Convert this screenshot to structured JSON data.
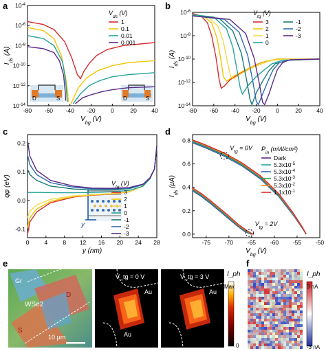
{
  "panel_labels": [
    "a",
    "b",
    "c",
    "d",
    "e",
    "f"
  ],
  "colors": {
    "red": "#d62d2d",
    "yellow": "#f2c400",
    "teal": "#21a39b",
    "purple": "#5b2a86",
    "orange": "#f08a24",
    "green": "#2e9b4a",
    "blue": "#2f6db0",
    "navy": "#1f2d6b"
  },
  "chart_data": [
    {
      "id": "a",
      "type": "line",
      "xlabel": "V_bg (V)",
      "ylabel": "I_ds (A)",
      "xlim": [
        -80,
        40
      ],
      "ylim_log10": [
        -14,
        -4
      ],
      "log_y": true,
      "x_ticks": [
        "-80",
        "-60",
        "-40",
        "-20",
        "0",
        "20",
        "40"
      ],
      "y_ticks": [
        "10^-14",
        "10^-12",
        "10^-10",
        "10^-8",
        "10^-6",
        "10^-4"
      ],
      "legend_title": "V_ds (V)",
      "legend_position": "top-right",
      "series": [
        {
          "name": "1",
          "color": "#d62d2d",
          "x": [
            -80,
            -65,
            -55,
            -45,
            -38,
            -33,
            -30,
            -27,
            -22,
            -15,
            -5,
            10,
            40
          ],
          "log_y": [
            -5.6,
            -5.9,
            -6.4,
            -7.6,
            -9.3,
            -10.9,
            -11.3,
            -10.6,
            -9.8,
            -9.0,
            -8.4,
            -8.0,
            -7.7
          ]
        },
        {
          "name": "0.1",
          "color": "#f2c400",
          "x": [
            -80,
            -65,
            -55,
            -48,
            -44,
            -42,
            -41.5
          ],
          "log_y": [
            -6.2,
            -6.5,
            -7.3,
            -9.0,
            -11.2,
            -12.8,
            -13.6
          ]
        },
        {
          "name": "0.01",
          "color": "#21a39b",
          "x": [
            -80,
            -65,
            -55,
            -47,
            -44,
            -43,
            -42.5
          ],
          "log_y": [
            -7.0,
            -7.3,
            -8.0,
            -9.6,
            -11.5,
            -12.9,
            -13.6
          ]
        },
        {
          "name": "0.001",
          "color": "#5b2a86",
          "x": [
            -80,
            -65,
            -55,
            -50,
            -46,
            -44.5,
            -44
          ],
          "log_y": [
            -8.1,
            -8.3,
            -8.7,
            -9.5,
            -10.9,
            -12.5,
            -13.5
          ]
        },
        {
          "name": "0.1",
          "color": "#f2c400",
          "x": [
            -39,
            -32,
            -24,
            -14,
            0,
            15,
            40
          ],
          "log_y": [
            -13.8,
            -12.2,
            -11.2,
            -10.5,
            -10.0,
            -9.7,
            -9.5
          ]
        },
        {
          "name": "0.01",
          "color": "#21a39b",
          "x": [
            -37,
            -30,
            -22,
            -12,
            0,
            15,
            40
          ],
          "log_y": [
            -13.8,
            -12.8,
            -12.0,
            -11.5,
            -11.1,
            -10.9,
            -10.7
          ]
        },
        {
          "name": "0.001",
          "color": "#5b2a86",
          "x": [
            -35,
            -28,
            -20,
            -10,
            0,
            15,
            40
          ],
          "log_y": [
            -13.8,
            -13.2,
            -12.9,
            -12.6,
            -12.4,
            -12.2,
            -12.1
          ]
        }
      ]
    },
    {
      "id": "b",
      "type": "line",
      "xlabel": "V_bg (V)",
      "ylabel": "I_ds (A)",
      "xlim": [
        -80,
        40
      ],
      "ylim_log10": [
        -14,
        -6
      ],
      "log_y": true,
      "x_ticks": [
        "-80",
        "-60",
        "-40",
        "-20",
        "0",
        "20",
        "40"
      ],
      "y_ticks": [
        "10^-14",
        "10^-12",
        "10^-10",
        "10^-8",
        "10^-6"
      ],
      "legend_title": "V_tg (V)",
      "legend_position": "top-right",
      "series": [
        {
          "name": "3",
          "color": "#d62d2d",
          "x": [
            -80,
            -72,
            -66,
            -62,
            -58,
            -55,
            -53,
            -50,
            -45,
            -35,
            -25,
            -15,
            0,
            20,
            40
          ],
          "log_y": [
            -6.1,
            -6.3,
            -6.9,
            -8.0,
            -9.8,
            -11.7,
            -12.5,
            -12.3,
            -11.8,
            -11.2,
            -10.7,
            -10.3,
            -10.0,
            -10.0,
            -10.0
          ]
        },
        {
          "name": "2",
          "color": "#f2c400",
          "x": [
            -80,
            -70,
            -62,
            -57,
            -53,
            -51,
            -48,
            -42,
            -32,
            -22,
            -12,
            0,
            20,
            40
          ],
          "log_y": [
            -6.2,
            -6.3,
            -6.9,
            -8.2,
            -10.2,
            -11.5,
            -11.9,
            -11.5,
            -11.0,
            -10.6,
            -10.2,
            -10.0,
            -10.0,
            -10.0
          ]
        },
        {
          "name": "1",
          "color": "#f5d94a",
          "x": [
            -80,
            -65,
            -56,
            -51,
            -47,
            -44,
            -41,
            -35,
            -25,
            -15,
            -5,
            10,
            40
          ],
          "log_y": [
            -6.2,
            -6.4,
            -7.2,
            -8.5,
            -10.3,
            -11.5,
            -11.7,
            -11.3,
            -10.8,
            -10.4,
            -10.1,
            -10.0,
            -10.0
          ]
        },
        {
          "name": "0",
          "color": "#21a39b",
          "x": [
            -80,
            -60,
            -48,
            -42,
            -38,
            -35,
            -33,
            -28,
            -20,
            -12,
            -5,
            5,
            40
          ],
          "log_y": [
            -6.2,
            -6.4,
            -7.4,
            -9.0,
            -11.0,
            -12.5,
            -13.0,
            -12.3,
            -11.5,
            -10.9,
            -10.4,
            -10.1,
            -10.0
          ]
        },
        {
          "name": "-1",
          "color": "#1a7a7a",
          "x": [
            -80,
            -55,
            -42,
            -34,
            -29,
            -26,
            -24,
            -20,
            -14,
            -8,
            -2,
            10,
            40
          ],
          "log_y": [
            -6.3,
            -6.5,
            -7.6,
            -9.5,
            -11.8,
            -13.4,
            -13.9,
            -12.9,
            -11.9,
            -11.0,
            -10.4,
            -10.1,
            -10.0
          ]
        },
        {
          "name": "-2",
          "color": "#2f6db0",
          "x": [
            -80,
            -50,
            -36,
            -28,
            -23,
            -20,
            -18,
            -14,
            -9,
            -4,
            2,
            10,
            40
          ],
          "log_y": [
            -6.3,
            -6.6,
            -7.7,
            -9.7,
            -12.0,
            -13.6,
            -13.9,
            -13.0,
            -11.9,
            -10.9,
            -10.3,
            -10.1,
            -10.0
          ]
        },
        {
          "name": "-3",
          "color": "#5b2a86",
          "x": [
            -80,
            -45,
            -30,
            -22,
            -17,
            -14,
            -12,
            -8,
            -4,
            0,
            5,
            12,
            40
          ],
          "log_y": [
            -6.3,
            -6.6,
            -7.8,
            -9.9,
            -12.1,
            -13.7,
            -13.9,
            -13.0,
            -11.9,
            -10.9,
            -10.3,
            -10.05,
            -10.0
          ]
        }
      ]
    },
    {
      "id": "c",
      "type": "line",
      "xlabel": "y (nm)",
      "ylabel": "qφ (eV)",
      "xlim": [
        0,
        28
      ],
      "ylim": [
        -0.13,
        0.23
      ],
      "x_ticks": [
        "0",
        "4",
        "8",
        "12",
        "16",
        "20",
        "24",
        "28"
      ],
      "y_ticks": [
        "-0.1",
        "0.0",
        "0.1",
        "0.2"
      ],
      "legend_title": "V_tg (V)",
      "legend_position": "center-right",
      "series": [
        {
          "name": "3",
          "color": "#d62d2d",
          "x": [
            0,
            0.5,
            2,
            5,
            10,
            14,
            18,
            22,
            25,
            26.5,
            27.5,
            28
          ],
          "y": [
            -0.12,
            -0.075,
            -0.04,
            -0.008,
            0.012,
            0.018,
            0.022,
            0.03,
            0.05,
            0.075,
            0.11,
            0.19
          ]
        },
        {
          "name": "2",
          "color": "#f2c400",
          "x": [
            0,
            0.5,
            2,
            5,
            10,
            14,
            18,
            22,
            25,
            26.5,
            27.5,
            28
          ],
          "y": [
            -0.095,
            -0.06,
            -0.03,
            -0.003,
            0.014,
            0.019,
            0.023,
            0.03,
            0.05,
            0.075,
            0.11,
            0.19
          ]
        },
        {
          "name": "1",
          "color": "#f5d94a",
          "x": [
            0,
            0.5,
            2,
            5,
            10,
            14,
            18,
            22,
            25,
            26.5,
            27.5,
            28
          ],
          "y": [
            -0.06,
            -0.038,
            -0.016,
            0.004,
            0.016,
            0.02,
            0.024,
            0.031,
            0.05,
            0.075,
            0.11,
            0.19
          ]
        },
        {
          "name": "0",
          "color": "#21a39b",
          "x": [
            0,
            1,
            3,
            6,
            10,
            14,
            18,
            22,
            25,
            26.5,
            27.5,
            28
          ],
          "y": [
            0.028,
            0.028,
            0.028,
            0.027,
            0.027,
            0.028,
            0.03,
            0.035,
            0.05,
            0.075,
            0.11,
            0.19
          ]
        },
        {
          "name": "-1",
          "color": "#1a7a7a",
          "x": [
            0,
            0.5,
            2,
            5,
            10,
            14,
            18,
            22,
            25,
            26.5,
            27.5,
            28
          ],
          "y": [
            0.11,
            0.09,
            0.07,
            0.05,
            0.04,
            0.037,
            0.037,
            0.041,
            0.055,
            0.078,
            0.11,
            0.19
          ]
        },
        {
          "name": "-2",
          "color": "#2f6db0",
          "x": [
            0,
            0.5,
            2,
            5,
            10,
            14,
            18,
            22,
            25,
            26.5,
            27.5,
            28
          ],
          "y": [
            0.16,
            0.125,
            0.09,
            0.062,
            0.046,
            0.041,
            0.04,
            0.043,
            0.056,
            0.078,
            0.11,
            0.19
          ]
        },
        {
          "name": "-3",
          "color": "#5b2a86",
          "x": [
            0,
            0.5,
            2,
            5,
            10,
            14,
            18,
            22,
            25,
            26.5,
            27.5,
            28
          ],
          "y": [
            0.21,
            0.155,
            0.105,
            0.07,
            0.05,
            0.043,
            0.042,
            0.045,
            0.057,
            0.079,
            0.11,
            0.19
          ]
        }
      ]
    },
    {
      "id": "d",
      "type": "line",
      "xlabel": "V_bg (V)",
      "ylabel": "I_ds (μA)",
      "xlim": [
        -78,
        -50
      ],
      "ylim": [
        -0.03,
        0.85
      ],
      "x_ticks": [
        "-75",
        "-70",
        "-65",
        "-60",
        "-55",
        "-50"
      ],
      "y_ticks": [
        "0.0",
        "0.2",
        "0.4",
        "0.6",
        "0.8"
      ],
      "legend_title": "P_in (mW/cm²)",
      "legend_position": "top-right",
      "annotations": [
        "V_tg = 0V",
        "V_tg = 2V"
      ],
      "series": [
        {
          "name": "Dark",
          "color": "#5b2a86",
          "group": "0V",
          "x": [
            -78,
            -75,
            -71,
            -67,
            -63,
            -59,
            -56,
            -54,
            -53
          ],
          "y": [
            0.78,
            0.735,
            0.665,
            0.58,
            0.47,
            0.32,
            0.17,
            0.06,
            0.0
          ]
        },
        {
          "name": "5.3x10^-5",
          "color": "#21a39b",
          "group": "0V",
          "x": [
            -78,
            -75,
            -71,
            -67,
            -63,
            -59,
            -56,
            -54,
            -53
          ],
          "y": [
            0.785,
            0.74,
            0.67,
            0.585,
            0.475,
            0.325,
            0.175,
            0.063,
            0.0
          ]
        },
        {
          "name": "5.3x10^-4",
          "color": "#2f6db0",
          "group": "0V",
          "x": [
            -78,
            -75,
            -71,
            -67,
            -63,
            -59,
            -56,
            -54,
            -53
          ],
          "y": [
            0.79,
            0.745,
            0.675,
            0.59,
            0.48,
            0.33,
            0.178,
            0.065,
            0.0
          ]
        },
        {
          "name": "5.3x10^-3",
          "color": "#2e9b4a",
          "group": "0V",
          "x": [
            -78,
            -75,
            -71,
            -67,
            -63,
            -59,
            -56,
            -54,
            -53
          ],
          "y": [
            0.795,
            0.75,
            0.68,
            0.595,
            0.485,
            0.335,
            0.181,
            0.066,
            0.0
          ]
        },
        {
          "name": "5.3x10^-2",
          "color": "#f08a24",
          "group": "0V",
          "x": [
            -78,
            -75,
            -71,
            -67,
            -63,
            -59,
            -56,
            -54,
            -53
          ],
          "y": [
            0.8,
            0.755,
            0.686,
            0.6,
            0.49,
            0.34,
            0.184,
            0.068,
            0.0
          ]
        },
        {
          "name": "1.1x10^-1",
          "color": "#d62d2d",
          "group": "0V",
          "x": [
            -78,
            -75,
            -71,
            -67,
            -63,
            -59,
            -56,
            -54,
            -53
          ],
          "y": [
            0.805,
            0.76,
            0.692,
            0.606,
            0.496,
            0.345,
            0.188,
            0.07,
            0.0
          ]
        },
        {
          "name": "Dark",
          "color": "#5b2a86",
          "group": "2V",
          "x": [
            -78,
            -76,
            -74,
            -72,
            -70,
            -68,
            -66.5,
            -65.5,
            -65
          ],
          "y": [
            0.37,
            0.32,
            0.26,
            0.195,
            0.13,
            0.065,
            0.022,
            0.004,
            0.0
          ]
        },
        {
          "name": "5.3x10^-5",
          "color": "#21a39b",
          "group": "2V",
          "x": [
            -78,
            -76,
            -74,
            -72,
            -70,
            -68,
            -66.4,
            -65.4,
            -64.9
          ],
          "y": [
            0.375,
            0.325,
            0.265,
            0.2,
            0.135,
            0.07,
            0.024,
            0.004,
            0.0
          ]
        },
        {
          "name": "5.3x10^-4",
          "color": "#2f6db0",
          "group": "2V",
          "x": [
            -78,
            -76,
            -74,
            -72,
            -70,
            -68,
            -66.3,
            -65.3,
            -64.8
          ],
          "y": [
            0.38,
            0.33,
            0.27,
            0.205,
            0.14,
            0.073,
            0.025,
            0.005,
            0.0
          ]
        },
        {
          "name": "5.3x10^-3",
          "color": "#2e9b4a",
          "group": "2V",
          "x": [
            -78,
            -76,
            -74,
            -72,
            -70,
            -68,
            -66.2,
            -65.2,
            -64.7
          ],
          "y": [
            0.385,
            0.335,
            0.275,
            0.21,
            0.145,
            0.077,
            0.026,
            0.005,
            0.0
          ]
        },
        {
          "name": "5.3x10^-2",
          "color": "#f08a24",
          "group": "2V",
          "x": [
            -78,
            -76,
            -74,
            -72,
            -70,
            -68,
            -66.1,
            -65.1,
            -64.6
          ],
          "y": [
            0.39,
            0.34,
            0.28,
            0.216,
            0.15,
            0.08,
            0.028,
            0.006,
            0.0
          ]
        },
        {
          "name": "1.1x10^-1",
          "color": "#d62d2d",
          "group": "2V",
          "x": [
            -78,
            -76,
            -74,
            -72,
            -70,
            -68,
            -66,
            -65,
            -64.5
          ],
          "y": [
            0.395,
            0.345,
            0.285,
            0.22,
            0.155,
            0.085,
            0.03,
            0.006,
            0.0
          ]
        }
      ]
    }
  ],
  "panel_e": {
    "labels": [
      "Gr",
      "WSe2",
      "D",
      "S",
      "10 μm"
    ],
    "map_labels": [
      "V_tg = 0 V",
      "V_tg = 3 V",
      "Au",
      "Au",
      "Au"
    ],
    "colorbar": {
      "title": "I_ph",
      "max": "Max",
      "min": "0"
    }
  },
  "panel_f": {
    "colorbar": {
      "title": "I_ph",
      "max": "3 nA",
      "min": "-3 nA"
    }
  }
}
